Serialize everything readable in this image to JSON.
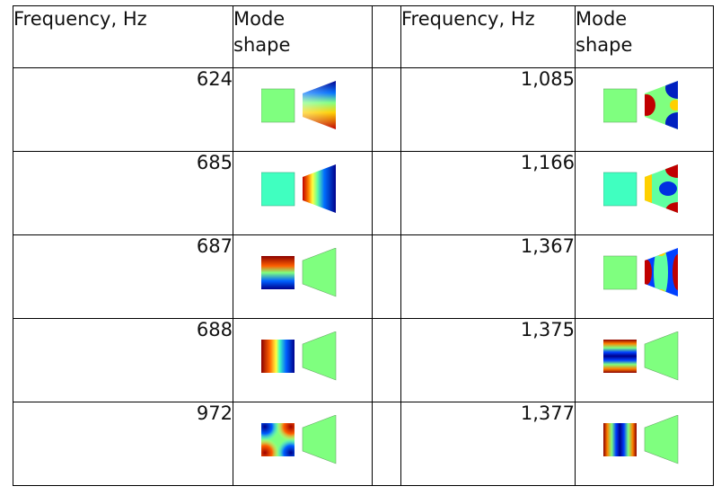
{
  "headers": {
    "frequency": "Frequency, Hz",
    "mode_line1": "Mode",
    "mode_line2": "shape"
  },
  "left_rows": [
    {
      "frequency": "624",
      "shape": "mode-624"
    },
    {
      "frequency": "685",
      "shape": "mode-685"
    },
    {
      "frequency": "687",
      "shape": "mode-687"
    },
    {
      "frequency": "688",
      "shape": "mode-688"
    },
    {
      "frequency": "972",
      "shape": "mode-972"
    }
  ],
  "right_rows": [
    {
      "frequency": "1,085",
      "shape": "mode-1085"
    },
    {
      "frequency": "1,166",
      "shape": "mode-1166"
    },
    {
      "frequency": "1,367",
      "shape": "mode-1367"
    },
    {
      "frequency": "1,375",
      "shape": "mode-1375"
    },
    {
      "frequency": "1,377",
      "shape": "mode-1377"
    }
  ]
}
